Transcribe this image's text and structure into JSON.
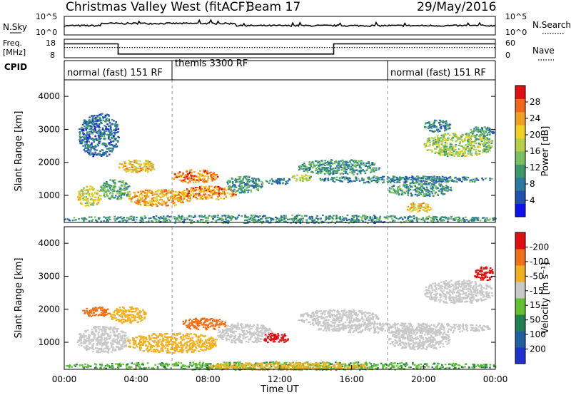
{
  "header": {
    "title": "Christmas Valley West (fitACF)",
    "beam": "Beam 17",
    "date": "29/May/2016"
  },
  "chart_data": [
    {
      "type": "line",
      "name": "noise",
      "left_label": "N.Sky",
      "right_label": "N.Search",
      "yticks": [
        "10^5",
        "10^0"
      ],
      "level": 0.5
    },
    {
      "type": "line",
      "name": "frequency",
      "left_label_line1": "Freq.",
      "left_label_line2": "[MHz]",
      "left_ticks": [
        "18",
        "8"
      ],
      "right_label": "Nave",
      "right_ticks": [
        "60",
        "0"
      ],
      "ylim": [
        8,
        18
      ],
      "x": [
        0,
        3,
        3,
        15,
        15,
        24
      ],
      "freq_mhz": [
        15.5,
        15.5,
        10,
        10,
        15.5,
        15.5
      ],
      "nave_level": 0.55
    },
    {
      "type": "table",
      "name": "cpid",
      "label": "CPID",
      "segments": [
        {
          "label": "normal (fast) 151 RF",
          "start": 0,
          "end": 6
        },
        {
          "label": "themis 3300 RF",
          "start": 6,
          "end": 18
        },
        {
          "label": "normal (fast) 151 RF",
          "start": 18,
          "end": 24
        }
      ]
    },
    {
      "type": "heatmap",
      "name": "power",
      "ylabel": "Slant Range [km]",
      "xlim": [
        0,
        24
      ],
      "ylim": [
        180,
        4500
      ],
      "yticks": [
        1000,
        2000,
        3000,
        4000
      ],
      "colorbar": {
        "label": "Power [dB]",
        "ticks": [
          "4",
          "8",
          "12",
          "16",
          "20",
          "24",
          "28"
        ],
        "colors": [
          "#1010f0",
          "#2050b0",
          "#2a7aa0",
          "#3a9a6a",
          "#78c060",
          "#b8d048",
          "#f0d020",
          "#f0a020",
          "#f06818",
          "#e01010"
        ]
      },
      "blobs": [
        {
          "t0": 0.7,
          "t1": 2.0,
          "r0": 700,
          "r1": 1300,
          "value": 20
        },
        {
          "t0": 2.0,
          "t1": 3.6,
          "r0": 900,
          "r1": 1500,
          "value": 14
        },
        {
          "t0": 3.0,
          "t1": 5.0,
          "r0": 1700,
          "r1": 2100,
          "value": 22
        },
        {
          "t0": 3.5,
          "t1": 7.0,
          "r0": 700,
          "r1": 1200,
          "value": 24
        },
        {
          "t0": 6.0,
          "t1": 8.5,
          "r0": 1400,
          "r1": 1800,
          "value": 26
        },
        {
          "t0": 6.5,
          "t1": 9.5,
          "r0": 900,
          "r1": 1300,
          "value": 25
        },
        {
          "t0": 9.0,
          "t1": 11.0,
          "r0": 1100,
          "r1": 1600,
          "value": 12
        },
        {
          "t0": 11.2,
          "t1": 12.6,
          "r0": 1350,
          "r1": 1550,
          "value": 10
        },
        {
          "t0": 12.6,
          "t1": 13.8,
          "r0": 1450,
          "r1": 1650,
          "value": 18
        },
        {
          "t0": 13.0,
          "t1": 17.5,
          "r0": 1650,
          "r1": 2100,
          "value": 12
        },
        {
          "t0": 14.0,
          "t1": 23.8,
          "r0": 1400,
          "r1": 1600,
          "value": 10
        },
        {
          "t0": 18.0,
          "t1": 21.5,
          "r0": 1000,
          "r1": 1400,
          "value": 12
        },
        {
          "t0": 19.0,
          "t1": 20.5,
          "r0": 500,
          "r1": 800,
          "value": 22
        },
        {
          "t0": 20.0,
          "t1": 23.8,
          "r0": 2200,
          "r1": 2900,
          "value": 17
        },
        {
          "t0": 20.0,
          "t1": 21.5,
          "r0": 2950,
          "r1": 3300,
          "value": 10
        },
        {
          "t0": 22.5,
          "t1": 23.9,
          "r0": 2800,
          "r1": 3100,
          "value": 12
        },
        {
          "t0": 0.8,
          "t1": 3.0,
          "r0": 2200,
          "r1": 3500,
          "value": 9
        },
        {
          "t0": 0.0,
          "t1": 24.0,
          "r0": 180,
          "r1": 420,
          "value": 12
        }
      ]
    },
    {
      "type": "heatmap",
      "name": "velocity",
      "ylabel": "Slant Range [km]",
      "xlabel": "Time UT",
      "xlim": [
        0,
        24
      ],
      "ylim": [
        180,
        4500
      ],
      "yticks": [
        1000,
        2000,
        3000,
        4000
      ],
      "xticks": [
        "00:00",
        "04:00",
        "08:00",
        "12:00",
        "16:00",
        "20:00",
        "00:00"
      ],
      "colorbar": {
        "label": "Velocity [m s⁻¹]",
        "ticks": [
          "200",
          "100",
          "50",
          "15",
          "-15",
          "-50",
          "-100",
          "-200"
        ],
        "colors": [
          "#2030d0",
          "#2060a0",
          "#208050",
          "#60c030",
          "#c8c8c8",
          "#f0b020",
          "#f07018",
          "#e01010"
        ]
      },
      "blobs": [
        {
          "t0": 0.7,
          "t1": 3.5,
          "r0": 700,
          "r1": 1500,
          "value": 0
        },
        {
          "t0": 1.0,
          "t1": 2.5,
          "r0": 1800,
          "r1": 2100,
          "value": -90
        },
        {
          "t0": 2.5,
          "t1": 4.5,
          "r0": 1600,
          "r1": 2100,
          "value": -45
        },
        {
          "t0": 3.5,
          "t1": 8.5,
          "r0": 700,
          "r1": 1300,
          "value": -30
        },
        {
          "t0": 6.5,
          "t1": 9.0,
          "r0": 1400,
          "r1": 1750,
          "value": -60
        },
        {
          "t0": 8.5,
          "t1": 11.5,
          "r0": 1000,
          "r1": 1600,
          "value": 0
        },
        {
          "t0": 11.0,
          "t1": 12.5,
          "r0": 1000,
          "r1": 1300,
          "value": -110
        },
        {
          "t0": 13.0,
          "t1": 17.5,
          "r0": 1500,
          "r1": 2000,
          "value": 0
        },
        {
          "t0": 14.0,
          "t1": 23.8,
          "r0": 1300,
          "r1": 1600,
          "value": 0
        },
        {
          "t0": 18.0,
          "t1": 21.5,
          "r0": 800,
          "r1": 1400,
          "value": 0
        },
        {
          "t0": 20.0,
          "t1": 23.8,
          "r0": 2200,
          "r1": 2900,
          "value": 0
        },
        {
          "t0": 22.8,
          "t1": 23.9,
          "r0": 2900,
          "r1": 3300,
          "value": -150
        },
        {
          "t0": 0.0,
          "t1": 24.0,
          "r0": 180,
          "r1": 420,
          "value": 30
        },
        {
          "t0": 8.0,
          "t1": 17.0,
          "r0": 180,
          "r1": 400,
          "value": -40
        }
      ]
    }
  ]
}
